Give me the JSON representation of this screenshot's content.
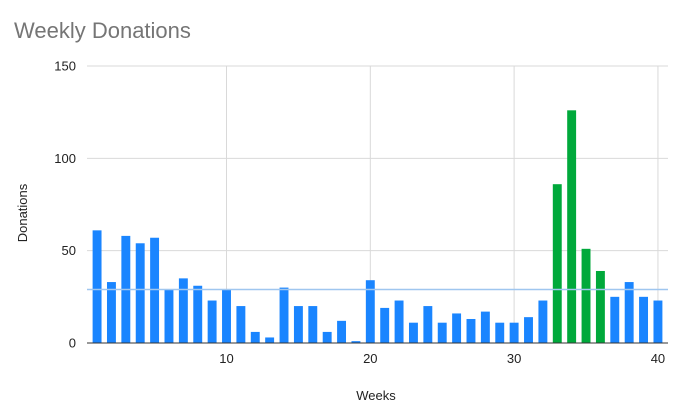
{
  "chart_data": {
    "type": "bar",
    "title": "Weekly Donations",
    "xlabel": "Weeks",
    "ylabel": "Donations",
    "x": [
      1,
      2,
      3,
      4,
      5,
      6,
      7,
      8,
      9,
      10,
      11,
      12,
      13,
      14,
      15,
      16,
      17,
      18,
      19,
      20,
      21,
      22,
      23,
      24,
      25,
      26,
      27,
      28,
      29,
      30,
      31,
      32,
      33,
      34,
      35,
      36,
      37,
      38,
      39,
      40
    ],
    "values": [
      61,
      33,
      58,
      54,
      57,
      29,
      35,
      31,
      23,
      29,
      20,
      6,
      3,
      30,
      20,
      20,
      6,
      12,
      1,
      34,
      19,
      23,
      11,
      20,
      11,
      16,
      13,
      17,
      11,
      11,
      14,
      23,
      86,
      126,
      51,
      39,
      25,
      33,
      25,
      23
    ],
    "highlight_x": [
      33,
      34,
      35,
      36
    ],
    "reference_line": 29,
    "xlim": [
      0.3,
      40.7
    ],
    "ylim": [
      0,
      150
    ],
    "x_ticks": [
      10,
      20,
      30,
      40
    ],
    "y_ticks": [
      0,
      50,
      100,
      150
    ],
    "grid": true,
    "legend": "none",
    "colors": {
      "bar": "#1a85ff",
      "highlight": "#00a93b",
      "reference": "#9fc6ef",
      "grid": "#d9d9d9",
      "axis": "#333333",
      "title": "#757575"
    }
  }
}
